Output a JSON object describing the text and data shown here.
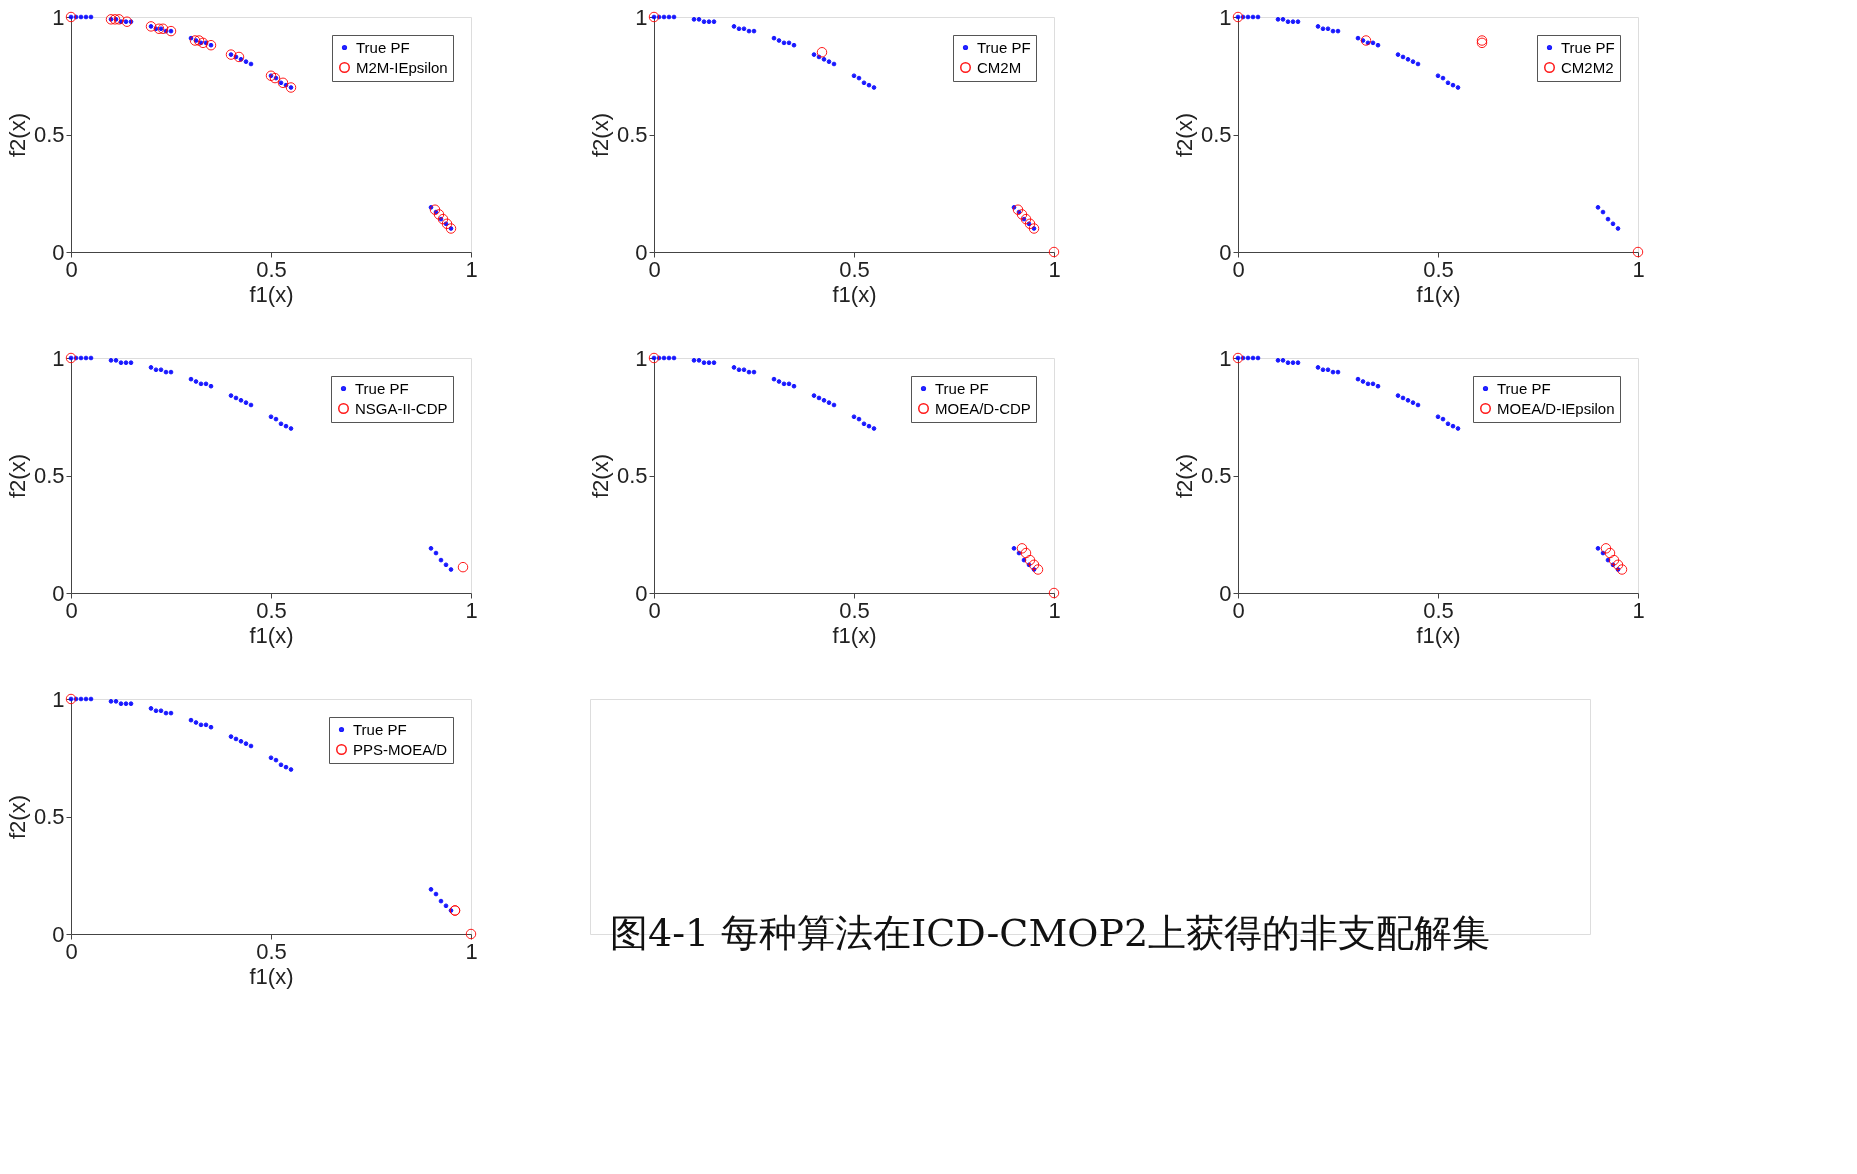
{
  "chart_data": [
    {
      "type": "scatter",
      "xlabel": "f1(x)",
      "ylabel": "f2(x)",
      "xlim": [
        0,
        1
      ],
      "ylim": [
        0,
        1
      ],
      "xticks": [
        0,
        0.5,
        1
      ],
      "yticks": [
        0,
        0.5,
        1
      ],
      "legend": "top right",
      "marker": "circle",
      "series": [
        {
          "name": "True PF",
          "color": "#0000ff",
          "x": [
            0,
            0.0125,
            0.025,
            0.0375,
            0.05,
            0.1,
            0.1125,
            0.125,
            0.1375,
            0.15,
            0.2,
            0.2125,
            0.225,
            0.2375,
            0.25,
            0.3,
            0.3125,
            0.325,
            0.3375,
            0.35,
            0.4,
            0.4125,
            0.425,
            0.4375,
            0.45,
            0.5,
            0.5125,
            0.525,
            0.5375,
            0.55,
            0.9,
            0.9125,
            0.925,
            0.9375,
            0.95
          ],
          "values": [
            1,
            1,
            1,
            1,
            1,
            0.99,
            0.99,
            0.98,
            0.98,
            0.98,
            0.96,
            0.95,
            0.95,
            0.94,
            0.94,
            0.91,
            0.9,
            0.89,
            0.89,
            0.88,
            0.84,
            0.83,
            0.82,
            0.81,
            0.8,
            0.75,
            0.74,
            0.72,
            0.71,
            0.7,
            0.19,
            0.17,
            0.14,
            0.12,
            0.1
          ]
        },
        {
          "name": "M2M-IEpsilon",
          "color": "#ff0000",
          "x": [
            0,
            0.1,
            0.11,
            0.12,
            0.14,
            0.2,
            0.22,
            0.23,
            0.25,
            0.31,
            0.32,
            0.33,
            0.35,
            0.4,
            0.42,
            0.5,
            0.51,
            0.53,
            0.55,
            0.91,
            0.92,
            0.93,
            0.94,
            0.95
          ],
          "values": [
            1,
            0.99,
            0.99,
            0.99,
            0.98,
            0.96,
            0.95,
            0.95,
            0.94,
            0.9,
            0.9,
            0.89,
            0.88,
            0.84,
            0.83,
            0.75,
            0.74,
            0.72,
            0.7,
            0.18,
            0.16,
            0.14,
            0.12,
            0.1
          ]
        }
      ]
    },
    {
      "type": "scatter",
      "xlabel": "f1(x)",
      "ylabel": "f2(x)",
      "xlim": [
        0,
        1
      ],
      "ylim": [
        0,
        1
      ],
      "xticks": [
        0,
        0.5,
        1
      ],
      "yticks": [
        0,
        0.5,
        1
      ],
      "legend": "top right",
      "marker": "circle",
      "series": [
        {
          "name": "True PF",
          "color": "#0000ff",
          "x": [
            0,
            0.0125,
            0.025,
            0.0375,
            0.05,
            0.1,
            0.1125,
            0.125,
            0.1375,
            0.15,
            0.2,
            0.2125,
            0.225,
            0.2375,
            0.25,
            0.3,
            0.3125,
            0.325,
            0.3375,
            0.35,
            0.4,
            0.4125,
            0.425,
            0.4375,
            0.45,
            0.5,
            0.5125,
            0.525,
            0.5375,
            0.55,
            0.9,
            0.9125,
            0.925,
            0.9375,
            0.95
          ],
          "values": [
            1,
            1,
            1,
            1,
            1,
            0.99,
            0.99,
            0.98,
            0.98,
            0.98,
            0.96,
            0.95,
            0.95,
            0.94,
            0.94,
            0.91,
            0.9,
            0.89,
            0.89,
            0.88,
            0.84,
            0.83,
            0.82,
            0.81,
            0.8,
            0.75,
            0.74,
            0.72,
            0.71,
            0.7,
            0.19,
            0.17,
            0.14,
            0.12,
            0.1
          ]
        },
        {
          "name": "CM2M",
          "color": "#ff0000",
          "x": [
            0,
            0.42,
            0.91,
            0.92,
            0.93,
            0.94,
            0.95,
            1
          ],
          "values": [
            1,
            0.85,
            0.18,
            0.16,
            0.14,
            0.12,
            0.1,
            0
          ]
        }
      ]
    },
    {
      "type": "scatter",
      "xlabel": "f1(x)",
      "ylabel": "f2(x)",
      "xlim": [
        0,
        1
      ],
      "ylim": [
        0,
        1
      ],
      "xticks": [
        0,
        0.5,
        1
      ],
      "yticks": [
        0,
        0.5,
        1
      ],
      "legend": "top right",
      "marker": "circle",
      "series": [
        {
          "name": "True PF",
          "color": "#0000ff",
          "x": [
            0,
            0.0125,
            0.025,
            0.0375,
            0.05,
            0.1,
            0.1125,
            0.125,
            0.1375,
            0.15,
            0.2,
            0.2125,
            0.225,
            0.2375,
            0.25,
            0.3,
            0.3125,
            0.325,
            0.3375,
            0.35,
            0.4,
            0.4125,
            0.425,
            0.4375,
            0.45,
            0.5,
            0.5125,
            0.525,
            0.5375,
            0.55,
            0.9,
            0.9125,
            0.925,
            0.9375,
            0.95
          ],
          "values": [
            1,
            1,
            1,
            1,
            1,
            0.99,
            0.99,
            0.98,
            0.98,
            0.98,
            0.96,
            0.95,
            0.95,
            0.94,
            0.94,
            0.91,
            0.9,
            0.89,
            0.89,
            0.88,
            0.84,
            0.83,
            0.82,
            0.81,
            0.8,
            0.75,
            0.74,
            0.72,
            0.71,
            0.7,
            0.19,
            0.17,
            0.14,
            0.12,
            0.1
          ]
        },
        {
          "name": "CM2M2",
          "color": "#ff0000",
          "x": [
            0,
            0.32,
            0.61,
            0.61,
            1
          ],
          "values": [
            1,
            0.9,
            0.9,
            0.89,
            0
          ]
        }
      ]
    },
    {
      "type": "scatter",
      "xlabel": "f1(x)",
      "ylabel": "f2(x)",
      "xlim": [
        0,
        1
      ],
      "ylim": [
        0,
        1
      ],
      "xticks": [
        0,
        0.5,
        1
      ],
      "yticks": [
        0,
        0.5,
        1
      ],
      "legend": "top right",
      "marker": "circle",
      "series": [
        {
          "name": "True PF",
          "color": "#0000ff",
          "x": [
            0,
            0.0125,
            0.025,
            0.0375,
            0.05,
            0.1,
            0.1125,
            0.125,
            0.1375,
            0.15,
            0.2,
            0.2125,
            0.225,
            0.2375,
            0.25,
            0.3,
            0.3125,
            0.325,
            0.3375,
            0.35,
            0.4,
            0.4125,
            0.425,
            0.4375,
            0.45,
            0.5,
            0.5125,
            0.525,
            0.5375,
            0.55,
            0.9,
            0.9125,
            0.925,
            0.9375,
            0.95
          ],
          "values": [
            1,
            1,
            1,
            1,
            1,
            0.99,
            0.99,
            0.98,
            0.98,
            0.98,
            0.96,
            0.95,
            0.95,
            0.94,
            0.94,
            0.91,
            0.9,
            0.89,
            0.89,
            0.88,
            0.84,
            0.83,
            0.82,
            0.81,
            0.8,
            0.75,
            0.74,
            0.72,
            0.71,
            0.7,
            0.19,
            0.17,
            0.14,
            0.12,
            0.1
          ]
        },
        {
          "name": "NSGA-II-CDP",
          "color": "#ff0000",
          "x": [
            0,
            0.98
          ],
          "values": [
            1,
            0.11
          ]
        }
      ]
    },
    {
      "type": "scatter",
      "xlabel": "f1(x)",
      "ylabel": "f2(x)",
      "xlim": [
        0,
        1
      ],
      "ylim": [
        0,
        1
      ],
      "xticks": [
        0,
        0.5,
        1
      ],
      "yticks": [
        0,
        0.5,
        1
      ],
      "legend": "top right",
      "marker": "circle",
      "series": [
        {
          "name": "True PF",
          "color": "#0000ff",
          "x": [
            0,
            0.0125,
            0.025,
            0.0375,
            0.05,
            0.1,
            0.1125,
            0.125,
            0.1375,
            0.15,
            0.2,
            0.2125,
            0.225,
            0.2375,
            0.25,
            0.3,
            0.3125,
            0.325,
            0.3375,
            0.35,
            0.4,
            0.4125,
            0.425,
            0.4375,
            0.45,
            0.5,
            0.5125,
            0.525,
            0.5375,
            0.55,
            0.9,
            0.9125,
            0.925,
            0.9375,
            0.95
          ],
          "values": [
            1,
            1,
            1,
            1,
            1,
            0.99,
            0.99,
            0.98,
            0.98,
            0.98,
            0.96,
            0.95,
            0.95,
            0.94,
            0.94,
            0.91,
            0.9,
            0.89,
            0.89,
            0.88,
            0.84,
            0.83,
            0.82,
            0.81,
            0.8,
            0.75,
            0.74,
            0.72,
            0.71,
            0.7,
            0.19,
            0.17,
            0.14,
            0.12,
            0.1
          ]
        },
        {
          "name": "MOEA/D-CDP",
          "color": "#ff0000",
          "x": [
            0,
            0.92,
            0.93,
            0.94,
            0.95,
            0.96,
            1
          ],
          "values": [
            1,
            0.19,
            0.17,
            0.14,
            0.12,
            0.1,
            0
          ]
        }
      ]
    },
    {
      "type": "scatter",
      "xlabel": "f1(x)",
      "ylabel": "f2(x)",
      "xlim": [
        0,
        1
      ],
      "ylim": [
        0,
        1
      ],
      "xticks": [
        0,
        0.5,
        1
      ],
      "yticks": [
        0,
        0.5,
        1
      ],
      "legend": "top right",
      "marker": "circle",
      "series": [
        {
          "name": "True PF",
          "color": "#0000ff",
          "x": [
            0,
            0.0125,
            0.025,
            0.0375,
            0.05,
            0.1,
            0.1125,
            0.125,
            0.1375,
            0.15,
            0.2,
            0.2125,
            0.225,
            0.2375,
            0.25,
            0.3,
            0.3125,
            0.325,
            0.3375,
            0.35,
            0.4,
            0.4125,
            0.425,
            0.4375,
            0.45,
            0.5,
            0.5125,
            0.525,
            0.5375,
            0.55,
            0.9,
            0.9125,
            0.925,
            0.9375,
            0.95
          ],
          "values": [
            1,
            1,
            1,
            1,
            1,
            0.99,
            0.99,
            0.98,
            0.98,
            0.98,
            0.96,
            0.95,
            0.95,
            0.94,
            0.94,
            0.91,
            0.9,
            0.89,
            0.89,
            0.88,
            0.84,
            0.83,
            0.82,
            0.81,
            0.8,
            0.75,
            0.74,
            0.72,
            0.71,
            0.7,
            0.19,
            0.17,
            0.14,
            0.12,
            0.1
          ]
        },
        {
          "name": "MOEA/D-IEpsilon",
          "color": "#ff0000",
          "x": [
            0,
            0.92,
            0.93,
            0.94,
            0.95,
            0.96
          ],
          "values": [
            1,
            0.19,
            0.17,
            0.14,
            0.12,
            0.1
          ]
        }
      ]
    },
    {
      "type": "scatter",
      "xlabel": "f1(x)",
      "ylabel": "f2(x)",
      "xlim": [
        0,
        1
      ],
      "ylim": [
        0,
        1
      ],
      "xticks": [
        0,
        0.5,
        1
      ],
      "yticks": [
        0,
        0.5,
        1
      ],
      "legend": "top right",
      "marker": "circle",
      "annotations": [
        "图4-1 每种算法在ICD-CMOP2上获得的非支配解集"
      ],
      "series": [
        {
          "name": "True PF",
          "color": "#0000ff",
          "x": [
            0,
            0.0125,
            0.025,
            0.0375,
            0.05,
            0.1,
            0.1125,
            0.125,
            0.1375,
            0.15,
            0.2,
            0.2125,
            0.225,
            0.2375,
            0.25,
            0.3,
            0.3125,
            0.325,
            0.3375,
            0.35,
            0.4,
            0.4125,
            0.425,
            0.4375,
            0.45,
            0.5,
            0.5125,
            0.525,
            0.5375,
            0.55,
            0.9,
            0.9125,
            0.925,
            0.9375,
            0.95
          ],
          "values": [
            1,
            1,
            1,
            1,
            1,
            0.99,
            0.99,
            0.98,
            0.98,
            0.98,
            0.96,
            0.95,
            0.95,
            0.94,
            0.94,
            0.91,
            0.9,
            0.89,
            0.89,
            0.88,
            0.84,
            0.83,
            0.82,
            0.81,
            0.8,
            0.75,
            0.74,
            0.72,
            0.71,
            0.7,
            0.19,
            0.17,
            0.14,
            0.12,
            0.1
          ]
        },
        {
          "name": "PPS-MOEA/D",
          "color": "#ff0000",
          "x": [
            0,
            0.96,
            0.96,
            1
          ],
          "values": [
            1,
            0.1,
            0.1,
            0
          ]
        }
      ]
    }
  ]
}
